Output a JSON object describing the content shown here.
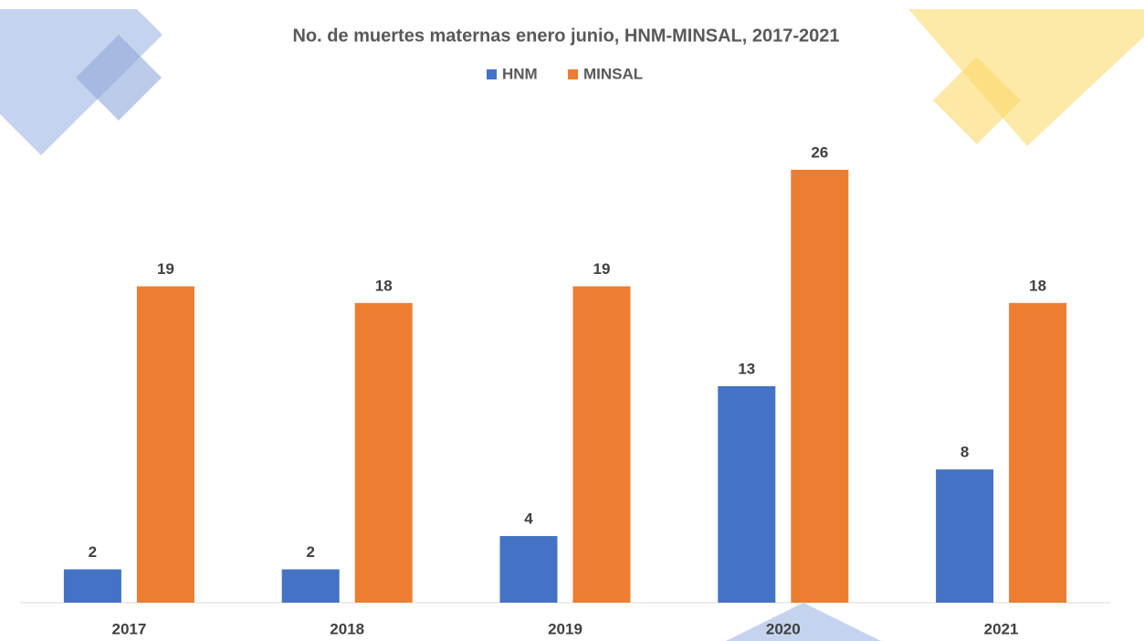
{
  "chart_data": {
    "type": "bar",
    "title": "No. de muertes maternas enero junio, HNM-MINSAL, 2017-2021",
    "categories": [
      "2017",
      "2018",
      "2019",
      "2020",
      "2021"
    ],
    "series": [
      {
        "name": "HNM",
        "color": "#4472c4",
        "values": [
          2,
          2,
          4,
          13,
          8
        ]
      },
      {
        "name": "MINSAL",
        "color": "#ed7d31",
        "values": [
          19,
          18,
          19,
          26,
          18
        ]
      }
    ],
    "ylim": [
      0,
      30
    ],
    "legend": "top"
  }
}
